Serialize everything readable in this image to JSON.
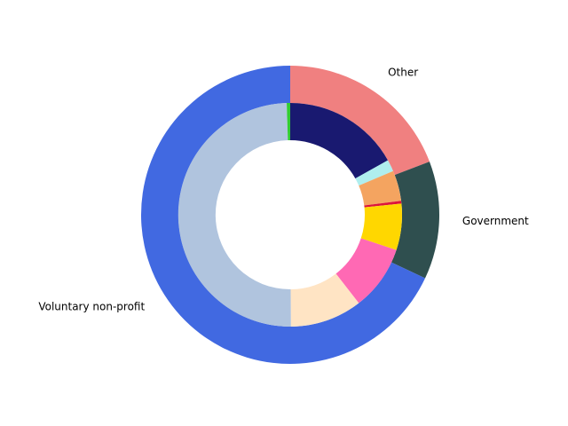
{
  "chart_data": {
    "type": "pie",
    "variant": "nested-donut",
    "title": "",
    "outer_ring": {
      "categories": [
        "Other",
        "Government",
        "Voluntary non-profit"
      ],
      "values": [
        19.2,
        12.8,
        68.0
      ],
      "colors": [
        "#F08080",
        "#2F4F4F",
        "#4169E1"
      ]
    },
    "inner_ring": {
      "values": [
        16.9,
        1.7,
        4.4,
        0.4,
        6.7,
        9.4,
        10.4,
        49.6,
        0.5
      ],
      "colors": [
        "#191970",
        "#AFEEEE",
        "#F4A460",
        "#DC143C",
        "#FFD700",
        "#FF69B4",
        "#FFE4C4",
        "#B0C4DE",
        "#32CD32"
      ]
    },
    "start_angle_deg": 90,
    "direction": "clockwise",
    "legend": "none"
  }
}
